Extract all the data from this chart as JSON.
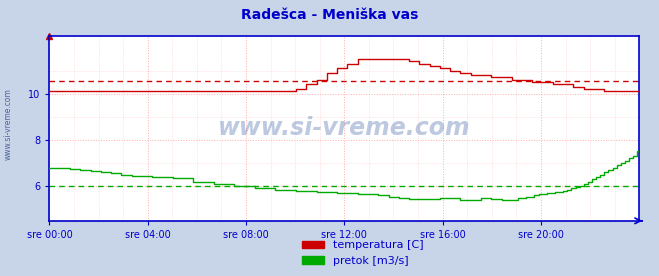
{
  "title": "Radešca - Meniška vas",
  "title_color": "#0000cc",
  "bg_color": "#c8d4e8",
  "plot_bg_color": "#ffffff",
  "xlabel_ticks": [
    "sre 00:00",
    "sre 04:00",
    "sre 08:00",
    "sre 12:00",
    "sre 16:00",
    "sre 20:00"
  ],
  "xlabel_positions_frac": [
    0.0,
    0.1667,
    0.3333,
    0.5,
    0.6667,
    0.8333
  ],
  "total_points": 288,
  "ylim": [
    4.5,
    12.5
  ],
  "yticks": [
    6,
    8,
    10
  ],
  "grid_color": "#ffaaaa",
  "temp_color": "#cc0000",
  "flow_color": "#00aa00",
  "axis_color": "#0000cc",
  "temp_mean_line": 10.55,
  "flow_mean_line": 6.0,
  "legend_temp": "temperatura [C]",
  "legend_flow": "pretok [m3/s]",
  "watermark": "www.si-vreme.com",
  "left_label": "www.si-vreme.com"
}
